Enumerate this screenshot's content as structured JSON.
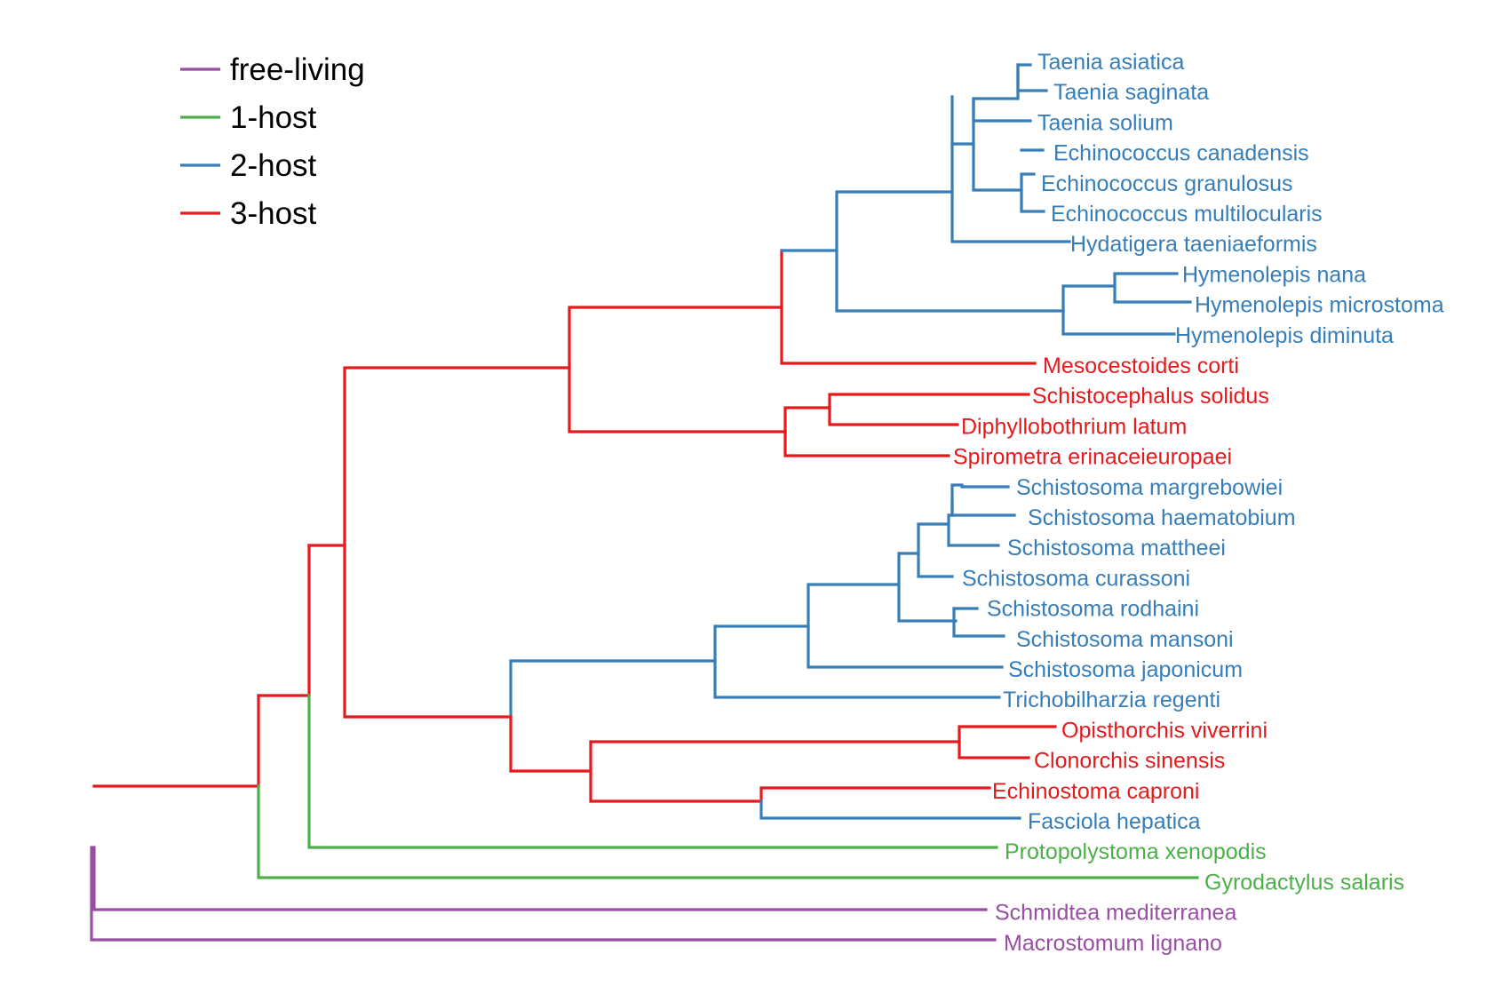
{
  "colors": {
    "free-living": "#984ea3",
    "1-host": "#4daf4a",
    "2-host": "#377eb8",
    "3-host": "#e41a1c"
  },
  "legend": [
    {
      "key": "free-living",
      "label": "free-living"
    },
    {
      "key": "1-host",
      "label": "1-host"
    },
    {
      "key": "2-host",
      "label": "2-host"
    },
    {
      "key": "3-host",
      "label": "3-host"
    }
  ],
  "taxa": [
    {
      "name": "Taenia asiatica",
      "host": "2-host"
    },
    {
      "name": "Taenia saginata",
      "host": "2-host"
    },
    {
      "name": "Taenia solium",
      "host": "2-host"
    },
    {
      "name": "Echinococcus canadensis",
      "host": "2-host"
    },
    {
      "name": "Echinococcus granulosus",
      "host": "2-host"
    },
    {
      "name": "Echinococcus multilocularis",
      "host": "2-host"
    },
    {
      "name": "Hydatigera taeniaeformis",
      "host": "2-host"
    },
    {
      "name": "Hymenolepis nana",
      "host": "2-host"
    },
    {
      "name": "Hymenolepis microstoma",
      "host": "2-host"
    },
    {
      "name": "Hymenolepis diminuta",
      "host": "2-host"
    },
    {
      "name": "Mesocestoides corti",
      "host": "3-host"
    },
    {
      "name": "Schistocephalus solidus",
      "host": "3-host"
    },
    {
      "name": "Diphyllobothrium latum",
      "host": "3-host"
    },
    {
      "name": "Spirometra erinaceieuropaei",
      "host": "3-host"
    },
    {
      "name": "Schistosoma margrebowiei",
      "host": "2-host"
    },
    {
      "name": "Schistosoma haematobium",
      "host": "2-host"
    },
    {
      "name": "Schistosoma mattheei",
      "host": "2-host"
    },
    {
      "name": "Schistosoma curassoni",
      "host": "2-host"
    },
    {
      "name": "Schistosoma rodhaini",
      "host": "2-host"
    },
    {
      "name": "Schistosoma mansoni",
      "host": "2-host"
    },
    {
      "name": "Schistosoma japonicum",
      "host": "2-host"
    },
    {
      "name": "Trichobilharzia regenti",
      "host": "2-host"
    },
    {
      "name": "Opisthorchis viverrini",
      "host": "3-host"
    },
    {
      "name": "Clonorchis sinensis",
      "host": "3-host"
    },
    {
      "name": "Echinostoma caproni",
      "host": "3-host"
    },
    {
      "name": "Fasciola hepatica",
      "host": "2-host"
    },
    {
      "name": "Protopolystoma xenopodis",
      "host": "1-host"
    },
    {
      "name": "Gyrodactylus salaris",
      "host": "1-host"
    },
    {
      "name": "Schmidtea mediterranea",
      "host": "free-living"
    },
    {
      "name": "Macrostomum lignano",
      "host": "free-living"
    }
  ]
}
